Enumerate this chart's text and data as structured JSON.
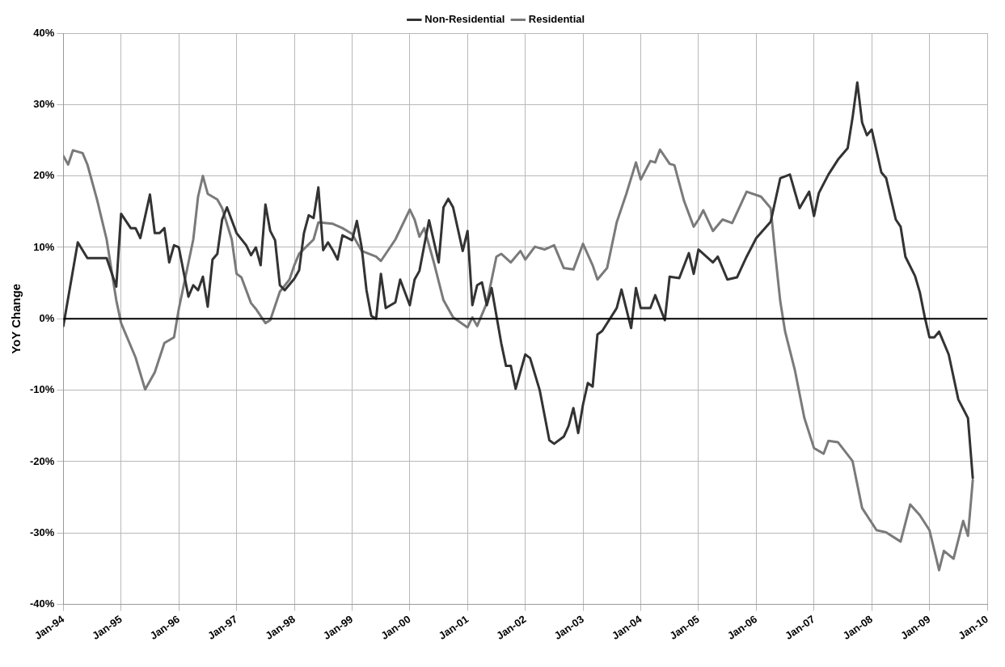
{
  "chart_data": {
    "type": "line",
    "ylabel": "YoY Change",
    "legend": "top",
    "grid": true,
    "marker": "none",
    "line_style": "solid",
    "xlim": [
      "1994-01",
      "2010-01"
    ],
    "xticks": [
      {
        "value": "1994-01",
        "label": "Jan-94"
      },
      {
        "value": "1995-01",
        "label": "Jan-95"
      },
      {
        "value": "1996-01",
        "label": "Jan-96"
      },
      {
        "value": "1997-01",
        "label": "Jan-97"
      },
      {
        "value": "1998-01",
        "label": "Jan-98"
      },
      {
        "value": "1999-01",
        "label": "Jan-99"
      },
      {
        "value": "2000-01",
        "label": "Jan-00"
      },
      {
        "value": "2001-01",
        "label": "Jan-01"
      },
      {
        "value": "2002-01",
        "label": "Jan-02"
      },
      {
        "value": "2003-01",
        "label": "Jan-03"
      },
      {
        "value": "2004-01",
        "label": "Jan-04"
      },
      {
        "value": "2005-01",
        "label": "Jan-05"
      },
      {
        "value": "2006-01",
        "label": "Jan-06"
      },
      {
        "value": "2007-01",
        "label": "Jan-07"
      },
      {
        "value": "2008-01",
        "label": "Jan-08"
      },
      {
        "value": "2009-01",
        "label": "Jan-09"
      },
      {
        "value": "2010-01",
        "label": "Jan-10"
      }
    ],
    "ylim": [
      -40,
      40
    ],
    "yticks": [
      {
        "value": -40,
        "label": "-40%"
      },
      {
        "value": -30,
        "label": "-30%"
      },
      {
        "value": -20,
        "label": "-20%"
      },
      {
        "value": -10,
        "label": "-10%"
      },
      {
        "value": 0,
        "label": "0%"
      },
      {
        "value": 10,
        "label": "10%"
      },
      {
        "value": 20,
        "label": "20%"
      },
      {
        "value": 30,
        "label": "30%"
      },
      {
        "value": 40,
        "label": "40%"
      }
    ],
    "ref_lines": [
      {
        "axis": "y",
        "value": 0,
        "color": "#000000"
      }
    ],
    "series": [
      {
        "name": "Non-Residential",
        "color": "#333333",
        "x": [
          "1994-01",
          "1994-04",
          "1994-06",
          "1994-10",
          "1994-12",
          "1995-01",
          "1995-03",
          "1995-04",
          "1995-05",
          "1995-07",
          "1995-08",
          "1995-09",
          "1995-10",
          "1995-11",
          "1995-12",
          "1996-01",
          "1996-03",
          "1996-04",
          "1996-05",
          "1996-06",
          "1996-07",
          "1996-08",
          "1996-09",
          "1996-10",
          "1996-11",
          "1997-01",
          "1997-03",
          "1997-04",
          "1997-05",
          "1997-06",
          "1997-07",
          "1997-08",
          "1997-09",
          "1997-10",
          "1997-11",
          "1998-01",
          "1998-02",
          "1998-03",
          "1998-04",
          "1998-05",
          "1998-06",
          "1998-07",
          "1998-08",
          "1998-09",
          "1998-10",
          "1998-11",
          "1999-01",
          "1999-02",
          "1999-03",
          "1999-04",
          "1999-05",
          "1999-06",
          "1999-07",
          "1999-08",
          "1999-10",
          "1999-11",
          "2000-01",
          "2000-02",
          "2000-03",
          "2000-05",
          "2000-07",
          "2000-08",
          "2000-09",
          "2000-10",
          "2000-12",
          "2001-01",
          "2001-02",
          "2001-03",
          "2001-04",
          "2001-05",
          "2001-06",
          "2001-08",
          "2001-09",
          "2001-10",
          "2001-11",
          "2002-01",
          "2002-02",
          "2002-04",
          "2002-06",
          "2002-07",
          "2002-09",
          "2002-10",
          "2002-11",
          "2002-12",
          "2003-01",
          "2003-02",
          "2003-03",
          "2003-04",
          "2003-05",
          "2003-08",
          "2003-09",
          "2003-11",
          "2003-12",
          "2004-01",
          "2004-03",
          "2004-04",
          "2004-06",
          "2004-07",
          "2004-09",
          "2004-11",
          "2004-12",
          "2005-01",
          "2005-04",
          "2005-05",
          "2005-07",
          "2005-09",
          "2005-11",
          "2006-01",
          "2006-04",
          "2006-06",
          "2006-08",
          "2006-10",
          "2006-12",
          "2007-01",
          "2007-02",
          "2007-04",
          "2007-06",
          "2007-08",
          "2007-09",
          "2007-10",
          "2007-11",
          "2007-12",
          "2008-01",
          "2008-03",
          "2008-04",
          "2008-06",
          "2008-07",
          "2008-08",
          "2008-10",
          "2008-11",
          "2008-12",
          "2009-01",
          "2009-02",
          "2009-03",
          "2009-05",
          "2009-07",
          "2009-09",
          "2009-10"
        ],
        "values": [
          -1,
          10.7,
          8.5,
          8.5,
          4.5,
          14.7,
          12.7,
          12.7,
          11.3,
          17.4,
          12,
          12,
          12.7,
          7.9,
          10.3,
          10,
          3.1,
          4.7,
          4,
          5.9,
          1.7,
          8.3,
          9.1,
          13.9,
          15.6,
          12,
          10.3,
          8.9,
          10,
          7.5,
          16,
          12.3,
          11,
          4.7,
          4,
          5.6,
          6.8,
          12,
          14.5,
          14.1,
          18.4,
          9.6,
          10.7,
          9.6,
          8.3,
          11.7,
          11,
          13.7,
          10,
          4,
          0.4,
          0,
          6.3,
          1.5,
          2.3,
          5.5,
          1.9,
          5.5,
          6.7,
          13.8,
          7.9,
          15.6,
          16.8,
          15.6,
          9.5,
          12.3,
          1.9,
          4.7,
          5.1,
          1.9,
          4.3,
          -3.4,
          -6.6,
          -6.6,
          -9.8,
          -5,
          -5.5,
          -10,
          -17,
          -17.5,
          -16.5,
          -15,
          -12.5,
          -16,
          -12,
          -9,
          -9.5,
          -2.2,
          -1.7,
          1.5,
          4.1,
          -1.3,
          4.3,
          1.5,
          1.5,
          3.3,
          -0.2,
          5.9,
          5.7,
          9.2,
          6.3,
          9.7,
          7.9,
          8.7,
          5.5,
          5.8,
          8.7,
          11.3,
          13.6,
          19.7,
          20.2,
          15.5,
          17.8,
          14.4,
          17.6,
          20.2,
          22.3,
          23.9,
          28.1,
          33.1,
          27.5,
          25.7,
          26.5,
          20.5,
          19.7,
          13.9,
          12.9,
          8.7,
          6,
          3.7,
          0.3,
          -2.6,
          -2.6,
          -1.8,
          -5,
          -11.3,
          -13.9,
          -22.3
        ]
      },
      {
        "name": "Residential",
        "color": "#7a7a7a",
        "x": [
          "1994-01",
          "1994-02",
          "1994-03",
          "1994-05",
          "1994-06",
          "1994-08",
          "1994-09",
          "1994-10",
          "1994-12",
          "1995-01",
          "1995-04",
          "1995-06",
          "1995-08",
          "1995-10",
          "1995-12",
          "1996-01",
          "1996-04",
          "1996-05",
          "1996-06",
          "1996-07",
          "1996-09",
          "1996-10",
          "1996-12",
          "1997-01",
          "1997-02",
          "1997-04",
          "1997-05",
          "1997-07",
          "1997-08",
          "1997-10",
          "1997-12",
          "1998-01",
          "1998-02",
          "1998-05",
          "1998-06",
          "1998-09",
          "1998-11",
          "1999-01",
          "1999-03",
          "1999-06",
          "1999-07",
          "1999-10",
          "2000-01",
          "2000-02",
          "2000-03",
          "2000-04",
          "2000-06",
          "2000-08",
          "2000-10",
          "2001-01",
          "2001-02",
          "2001-03",
          "2001-05",
          "2001-07",
          "2001-08",
          "2001-10",
          "2001-12",
          "2002-01",
          "2002-03",
          "2002-05",
          "2002-07",
          "2002-09",
          "2002-11",
          "2003-01",
          "2003-03",
          "2003-04",
          "2003-06",
          "2003-08",
          "2003-10",
          "2003-12",
          "2004-01",
          "2004-03",
          "2004-04",
          "2004-05",
          "2004-07",
          "2004-08",
          "2004-10",
          "2004-12",
          "2005-01",
          "2005-02",
          "2005-04",
          "2005-06",
          "2005-08",
          "2005-11",
          "2006-02",
          "2006-04",
          "2006-05",
          "2006-06",
          "2006-07",
          "2006-09",
          "2006-11",
          "2007-01",
          "2007-03",
          "2007-04",
          "2007-06",
          "2007-09",
          "2007-11",
          "2008-02",
          "2008-04",
          "2008-07",
          "2008-09",
          "2008-11",
          "2009-01",
          "2009-03",
          "2009-04",
          "2009-06",
          "2009-08",
          "2009-09",
          "2009-10"
        ],
        "values": [
          22.8,
          21.6,
          23.6,
          23.2,
          21.6,
          16.7,
          13.9,
          11.1,
          2.6,
          -0.6,
          -5.4,
          -9.9,
          -7.5,
          -3.4,
          -2.6,
          1.4,
          11.1,
          17.1,
          20,
          17.5,
          16.7,
          15.5,
          11.1,
          6.3,
          5.8,
          2.2,
          1.4,
          -0.6,
          -0.2,
          3.8,
          5.5,
          7.5,
          9.1,
          11.1,
          13.5,
          13.3,
          12.7,
          11.9,
          9.5,
          8.7,
          8.1,
          11.1,
          15.3,
          13.9,
          11.5,
          12.7,
          7.9,
          2.6,
          0.2,
          -1.2,
          0.2,
          -1,
          2.2,
          8.7,
          9.1,
          7.9,
          9.5,
          8.3,
          10.1,
          9.7,
          10.3,
          7.1,
          6.9,
          10.5,
          7.5,
          5.5,
          7.1,
          13.5,
          17.5,
          21.9,
          19.5,
          22.1,
          21.9,
          23.7,
          21.7,
          21.5,
          16.5,
          12.9,
          13.9,
          15.2,
          12.3,
          13.9,
          13.4,
          17.8,
          17.1,
          15.5,
          8.7,
          2.4,
          -1.8,
          -7.1,
          -13.9,
          -18.1,
          -18.9,
          -17.1,
          -17.3,
          -19.9,
          -26.5,
          -29.6,
          -29.9,
          -31.2,
          -26,
          -27.5,
          -29.6,
          -35.2,
          -32.5,
          -33.6,
          -28.3,
          -30.4,
          -22.6
        ]
      }
    ]
  }
}
